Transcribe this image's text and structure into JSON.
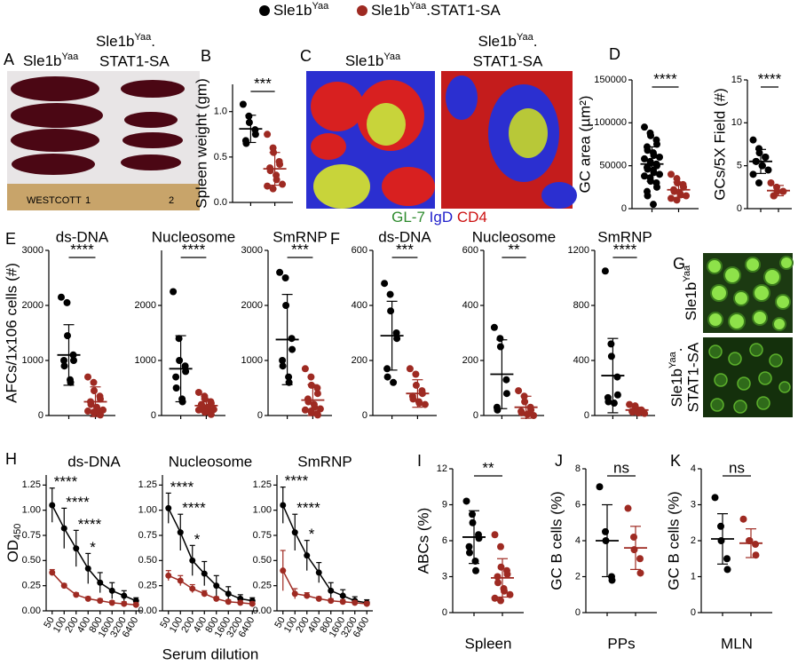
{
  "legend": [
    {
      "base": "Sle1b",
      "sup": "Yaa",
      "color": "#000000"
    },
    {
      "base": "Sle1b",
      "sup": "Yaa",
      "rest": ".STAT1-SA",
      "color": "#9e2a22"
    }
  ],
  "images": {
    "A": {
      "panel": "A",
      "left": {
        "base": "Sle1b",
        "sup": "Yaa"
      },
      "right": {
        "base": "Sle1b",
        "sup": "Yaa",
        "rest": "."
      },
      "right_line2": "STAT1-SA",
      "ruler": "WESTCOTT",
      "ruler_marks": [
        "1",
        "2"
      ]
    },
    "C": {
      "panel": "C",
      "left": {
        "base": "Sle1b",
        "sup": "Yaa"
      },
      "right": {
        "base": "Sle1b",
        "sup": "Yaa",
        "rest": "."
      },
      "right_line2": "STAT1-SA",
      "stain": [
        "GL-7",
        "IgD",
        "CD4"
      ]
    },
    "G": {
      "panel": "G",
      "top": {
        "base": "Sle1b",
        "sup": "Yaa"
      },
      "bottom": {
        "base": "Sle1b",
        "sup": "Yaa",
        "rest": "."
      },
      "bottom_line2": "STAT1-SA"
    }
  },
  "chart_data": [
    {
      "type": "dotplot",
      "panel": "B",
      "ylabel": "Spleen weight (gm)",
      "ylim": [
        0,
        1.3
      ],
      "yticks": [
        {
          "value": 0,
          "label": "0.0"
        },
        {
          "value": 0.5,
          "label": "0.5"
        },
        {
          "value": 1,
          "label": "1.0"
        }
      ],
      "significance": "***",
      "series": [
        {
          "color": "#000000",
          "values": [
            1.08,
            0.95,
            0.88,
            0.8,
            0.75,
            0.68,
            0.65
          ],
          "mean": 0.81,
          "sd": 0.15
        },
        {
          "color": "#9e2a22",
          "values": [
            0.75,
            0.6,
            0.55,
            0.45,
            0.42,
            0.38,
            0.35,
            0.3,
            0.25,
            0.2,
            0.18,
            0.15
          ],
          "mean": 0.37,
          "sd": 0.18
        }
      ]
    },
    {
      "type": "dotplot",
      "panel": "D",
      "ylabel": "GC area (µm²)",
      "ylim": [
        0,
        150000
      ],
      "yticks": [
        0,
        50000,
        100000,
        150000
      ],
      "significance": "****",
      "series": [
        {
          "color": "#000000",
          "values": [
            95000,
            88000,
            85000,
            80000,
            75000,
            72000,
            68000,
            65000,
            62000,
            60000,
            58000,
            55000,
            53000,
            52000,
            50000,
            48000,
            46000,
            45000,
            42000,
            40000,
            38000,
            36000,
            32000,
            30000,
            25000,
            20000,
            15000,
            5000
          ],
          "mean": 52000,
          "sd": 20000
        },
        {
          "color": "#9e2a22",
          "values": [
            40000,
            35000,
            30000,
            28000,
            25000,
            22000,
            20000,
            18000,
            16000,
            15000,
            12000,
            10000
          ],
          "mean": 22000,
          "sd": 9000
        }
      ]
    },
    {
      "type": "dotplot",
      "ylabel": "GCs/5X Field (#)",
      "ylim": [
        0,
        15
      ],
      "yticks": [
        0,
        5,
        10,
        15
      ],
      "significance": "****",
      "series": [
        {
          "color": "#000000",
          "values": [
            8,
            7,
            6.5,
            6,
            6,
            5.5,
            5.5,
            5,
            5,
            4.5,
            4,
            3
          ],
          "mean": 5.5,
          "sd": 1.4
        },
        {
          "color": "#9e2a22",
          "values": [
            3,
            2.5,
            2,
            2,
            2,
            1.5,
            1.5
          ],
          "mean": 2.1,
          "sd": 0.6
        }
      ]
    },
    {
      "type": "dotplot",
      "panel": "E",
      "title": "ds-DNA",
      "ylabel": "AFCs/1x106 cells (#)",
      "ylim": [
        0,
        3000
      ],
      "yticks": [
        0,
        1000,
        2000,
        3000
      ],
      "significance": "****",
      "series": [
        {
          "color": "#000000",
          "values": [
            2150,
            2050,
            1450,
            1100,
            1000,
            1000,
            900,
            650,
            600
          ],
          "mean": 1100,
          "sd": 550
        },
        {
          "color": "#9e2a22",
          "values": [
            700,
            600,
            450,
            350,
            300,
            250,
            200,
            150,
            120,
            100,
            80,
            60,
            50,
            30,
            10
          ],
          "mean": 250,
          "sd": 270
        }
      ]
    },
    {
      "type": "dotplot",
      "title": "Nucleosome",
      "ylim": [
        0,
        3000
      ],
      "yticks": [
        0,
        1000,
        2000
      ],
      "significance": "****",
      "series": [
        {
          "color": "#000000",
          "values": [
            2250,
            1400,
            1000,
            900,
            800,
            700,
            500,
            300,
            250
          ],
          "mean": 850,
          "sd": 600
        },
        {
          "color": "#9e2a22",
          "values": [
            420,
            350,
            300,
            250,
            220,
            200,
            180,
            150,
            130,
            110,
            100,
            80,
            60,
            40,
            20
          ],
          "mean": 180,
          "sd": 120
        }
      ]
    },
    {
      "type": "dotplot",
      "title": "SmRNP",
      "ylim": [
        0,
        3000
      ],
      "yticks": [
        0,
        1000,
        2000,
        3000
      ],
      "significance": "***",
      "series": [
        {
          "color": "#000000",
          "values": [
            2600,
            2500,
            2000,
            1400,
            1200,
            1000,
            900,
            700,
            600
          ],
          "mean": 1380,
          "sd": 820
        },
        {
          "color": "#9e2a22",
          "values": [
            850,
            700,
            550,
            500,
            400,
            300,
            250,
            200,
            150,
            120,
            100,
            80,
            50,
            30,
            10
          ],
          "mean": 280,
          "sd": 280
        }
      ]
    },
    {
      "type": "dotplot",
      "panel": "F",
      "title": "ds-DNA",
      "ylim": [
        0,
        600
      ],
      "yticks": [
        0,
        200,
        400,
        600
      ],
      "significance": "***",
      "series": [
        {
          "color": "#000000",
          "values": [
            480,
            440,
            380,
            300,
            280,
            170,
            140,
            120
          ],
          "mean": 290,
          "sd": 125
        },
        {
          "color": "#9e2a22",
          "values": [
            170,
            150,
            110,
            90,
            80,
            70,
            60,
            50,
            45,
            40
          ],
          "mean": 80,
          "sd": 50
        }
      ]
    },
    {
      "type": "dotplot",
      "title": "Nucleosome",
      "ylim": [
        0,
        600
      ],
      "yticks": [
        0,
        200,
        400,
        600
      ],
      "significance": "**",
      "series": [
        {
          "color": "#000000",
          "values": [
            320,
            280,
            250,
            130,
            80,
            30,
            20
          ],
          "mean": 150,
          "sd": 125
        },
        {
          "color": "#9e2a22",
          "values": [
            90,
            70,
            50,
            30,
            20,
            15,
            10,
            5,
            5,
            0
          ],
          "mean": 30,
          "sd": 40
        }
      ]
    },
    {
      "type": "dotplot",
      "title": "SmRNP",
      "ylim": [
        0,
        1200
      ],
      "yticks": [
        0,
        400,
        800,
        1200
      ],
      "significance": "****",
      "series": [
        {
          "color": "#000000",
          "values": [
            1050,
            520,
            430,
            280,
            150,
            130,
            100,
            90
          ],
          "mean": 290,
          "sd": 270
        },
        {
          "color": "#9e2a22",
          "values": [
            80,
            70,
            50,
            40,
            35,
            30,
            25,
            20,
            20,
            15
          ],
          "mean": 40,
          "sd": 20
        }
      ]
    },
    {
      "type": "line",
      "panel": "H",
      "title": "ds-DNA",
      "ylabel": {
        "base": "OD",
        "sub": "450"
      },
      "categories": [
        "50",
        "100",
        "200",
        "400",
        "800",
        "1600",
        "3200",
        "6400"
      ],
      "ylim": [
        0,
        1.35
      ],
      "yticks": [
        {
          "value": 0,
          "label": "0.00"
        },
        {
          "value": 0.25,
          "label": "0.25"
        },
        {
          "value": 0.5,
          "label": "0.50"
        },
        {
          "value": 0.75,
          "label": "0.75"
        },
        {
          "value": 1,
          "label": "1.00"
        },
        {
          "value": 1.25,
          "label": "1.25"
        }
      ],
      "significance": [
        "****",
        "****",
        "****",
        "*",
        null,
        null,
        null,
        null
      ],
      "series": [
        {
          "color": "#000000",
          "values": [
            1.05,
            0.82,
            0.62,
            0.42,
            0.28,
            0.2,
            0.15,
            0.1
          ],
          "errors": [
            0.17,
            0.2,
            0.18,
            0.15,
            0.1,
            0.08,
            0.05,
            0.03
          ]
        },
        {
          "color": "#9e2a22",
          "values": [
            0.38,
            0.25,
            0.16,
            0.12,
            0.1,
            0.08,
            0.07,
            0.06
          ],
          "errors": [
            0.03,
            0.02,
            0.02,
            0.02,
            0.02,
            0.02,
            0.02,
            0.02
          ]
        }
      ]
    },
    {
      "type": "line",
      "title": "Nucleosome",
      "xlabel": "Serum dilution",
      "categories": [
        "50",
        "100",
        "200",
        "400",
        "800",
        "1600",
        "3200",
        "6400"
      ],
      "ylim": [
        0,
        1.35
      ],
      "yticks": [
        {
          "value": 0,
          "label": "0.00"
        },
        {
          "value": 0.25,
          "label": "0.25"
        },
        {
          "value": 0.5,
          "label": "0.50"
        },
        {
          "value": 0.75,
          "label": "0.75"
        },
        {
          "value": 1,
          "label": "1.00"
        },
        {
          "value": 1.25,
          "label": "1.25"
        }
      ],
      "significance": [
        "****",
        "****",
        "*",
        null,
        null,
        null,
        null,
        null
      ],
      "series": [
        {
          "color": "#000000",
          "values": [
            1.02,
            0.78,
            0.5,
            0.37,
            0.25,
            0.17,
            0.12,
            0.1
          ],
          "errors": [
            0.15,
            0.18,
            0.15,
            0.12,
            0.1,
            0.07,
            0.04,
            0.03
          ]
        },
        {
          "color": "#9e2a22",
          "values": [
            0.35,
            0.3,
            0.22,
            0.17,
            0.12,
            0.09,
            0.08,
            0.07
          ],
          "errors": [
            0.05,
            0.05,
            0.04,
            0.03,
            0.02,
            0.02,
            0.02,
            0.02
          ]
        }
      ]
    },
    {
      "type": "line",
      "title": "SmRNP",
      "categories": [
        "50",
        "100",
        "200",
        "400",
        "800",
        "1600",
        "3200",
        "6400"
      ],
      "ylim": [
        0,
        1.35
      ],
      "yticks": [
        {
          "value": 0,
          "label": "0.00"
        },
        {
          "value": 0.25,
          "label": "0.25"
        },
        {
          "value": 0.5,
          "label": "0.50"
        },
        {
          "value": 0.75,
          "label": "0.75"
        },
        {
          "value": 1,
          "label": "1.00"
        },
        {
          "value": 1.25,
          "label": "1.25"
        }
      ],
      "significance": [
        "****",
        "****",
        "*",
        null,
        null,
        null,
        null,
        null
      ],
      "series": [
        {
          "color": "#000000",
          "values": [
            1.05,
            0.78,
            0.55,
            0.38,
            0.2,
            0.15,
            0.1,
            0.08
          ],
          "errors": [
            0.18,
            0.18,
            0.15,
            0.1,
            0.08,
            0.06,
            0.04,
            0.03
          ]
        },
        {
          "color": "#9e2a22",
          "values": [
            0.4,
            0.17,
            0.15,
            0.12,
            0.1,
            0.09,
            0.08,
            0.07
          ],
          "errors": [
            0.2,
            0.05,
            0.03,
            0.02,
            0.02,
            0.02,
            0.02,
            0.02
          ]
        }
      ]
    },
    {
      "type": "dotplot",
      "panel": "I",
      "ylabel": "ABCs (%)",
      "xlabel": "Spleen",
      "ylim": [
        0,
        12
      ],
      "yticks": [
        0,
        3,
        6,
        9,
        12
      ],
      "significance": "**",
      "series": [
        {
          "color": "#000000",
          "values": [
            9.3,
            8.2,
            7.5,
            6.5,
            6.2,
            5.5,
            5,
            4.3,
            3.5
          ],
          "mean": 6.3,
          "sd": 2.2
        },
        {
          "color": "#9e2a22",
          "values": [
            6.5,
            5.5,
            3.8,
            3.5,
            3.2,
            3,
            2.5,
            2,
            1.8,
            1.5,
            1.2,
            1
          ],
          "mean": 2.9,
          "sd": 1.6
        }
      ]
    },
    {
      "type": "dotplot",
      "panel": "J",
      "ylabel": "GC B cells (%)",
      "xlabel": "PPs",
      "ylim": [
        0,
        8
      ],
      "yticks": [
        0,
        2,
        4,
        6,
        8
      ],
      "significance": "ns",
      "series": [
        {
          "color": "#000000",
          "values": [
            7,
            4.5,
            4,
            2,
            1.8
          ],
          "mean": 4,
          "sd": 2
        },
        {
          "color": "#9e2a22",
          "values": [
            5.8,
            4.2,
            3.5,
            3,
            2.2
          ],
          "mean": 3.6,
          "sd": 1.2
        }
      ]
    },
    {
      "type": "dotplot",
      "panel": "K",
      "ylabel": "GC B cells (%)",
      "xlabel": "MLN",
      "ylim": [
        0,
        4
      ],
      "yticks": [
        0,
        1,
        2,
        3,
        4
      ],
      "significance": "ns",
      "series": [
        {
          "color": "#000000",
          "values": [
            3.2,
            2.4,
            2,
            1.5,
            1.2
          ],
          "mean": 2.05,
          "sd": 0.7
        },
        {
          "color": "#9e2a22",
          "values": [
            2.6,
            2,
            2,
            1.9,
            1.6
          ],
          "mean": 1.93,
          "sd": 0.4
        }
      ]
    }
  ]
}
